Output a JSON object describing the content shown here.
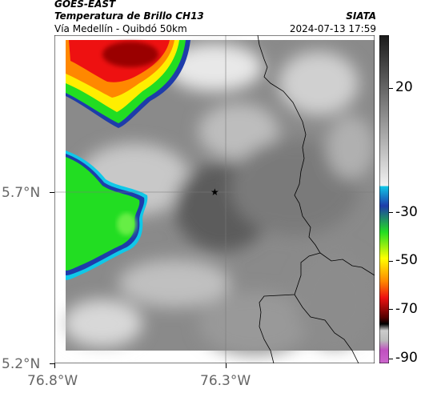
{
  "header": {
    "satellite": "GOES-EAST",
    "product": "Temperatura de Brillo CH13",
    "organization": "SIATA",
    "route": "Vía Medellín - Quibdó 50km",
    "timestamp": "2024-07-13 17:59"
  },
  "map": {
    "lat_ticks": [
      "5.7°N",
      "5.2°N"
    ],
    "lon_ticks": [
      "76.8°W",
      "76.3°W"
    ],
    "marker": "star-icon"
  },
  "colorbar": {
    "tick_labels": [
      "20",
      "-30",
      "-50",
      "-70",
      "-90"
    ],
    "colors": {
      "gray_dark": "#1a1a1a",
      "gray_light": "#f2f2f2",
      "cyan": "#10c8e8",
      "blue": "#1e3caa",
      "green": "#22dd22",
      "yellow": "#ffff00",
      "orange": "#ff8800",
      "red": "#ee1111",
      "darkred": "#770000",
      "purple": "#c050c0"
    }
  }
}
